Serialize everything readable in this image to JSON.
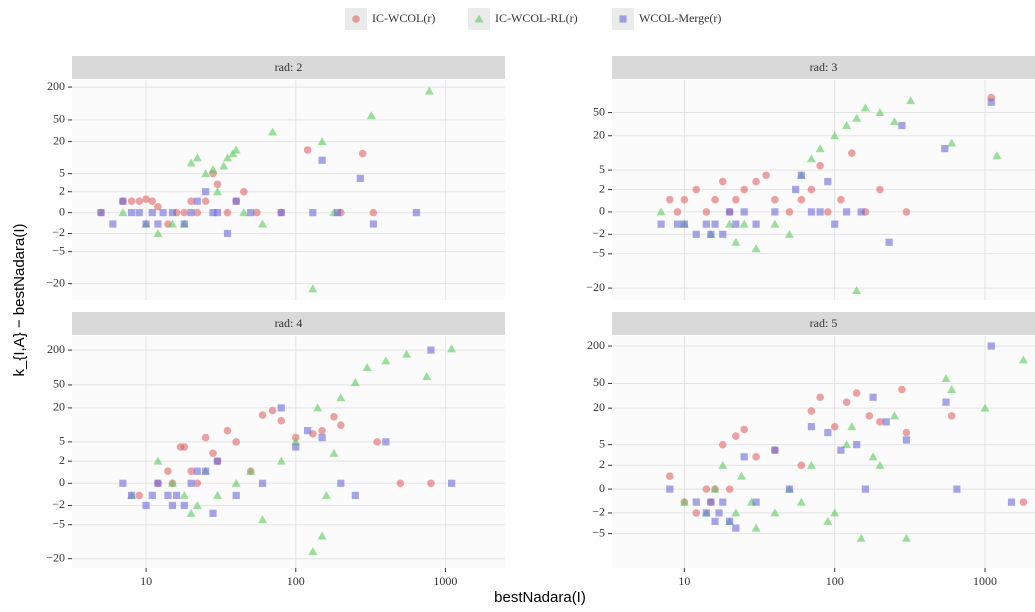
{
  "chart_data": [
    {
      "type": "scatter",
      "title": "rad: 2",
      "xlabel": "bestNadara(I)",
      "ylabel": "k_{I,A} − bestNadara(I)",
      "xscale": "log",
      "yscale": "pseudo_log",
      "grid": true,
      "legend": "top",
      "xlim": [
        3.2,
        2500
      ],
      "ylim": [
        -40,
        270
      ],
      "xticks": [
        10,
        100,
        1000
      ],
      "yticks": [
        {
          "value": -20,
          "label": "−20"
        },
        {
          "value": -5,
          "label": "−5"
        },
        {
          "value": -2,
          "label": "−2"
        },
        0,
        2,
        5,
        20,
        50,
        200
      ],
      "series": [
        {
          "name": "IC-WCOL(r)",
          "color": "#e06666",
          "marker": "circle",
          "x": [
            5,
            7,
            8,
            9,
            10,
            11,
            12,
            14,
            16,
            18,
            20,
            22,
            25,
            28,
            30,
            35,
            40,
            45,
            55,
            80,
            120,
            200,
            280,
            330
          ],
          "values": [
            0,
            1,
            1,
            1,
            1.2,
            1,
            0.5,
            -1,
            0,
            0,
            1,
            0,
            1,
            5,
            3,
            0,
            1,
            2,
            0,
            0,
            14,
            0,
            12,
            0
          ]
        },
        {
          "name": "IC-WCOL-RL(r)",
          "color": "#5ccb5c",
          "marker": "triangle",
          "x": [
            7,
            10,
            12,
            15,
            18,
            20,
            22,
            25,
            28,
            30,
            33,
            35,
            38,
            40,
            45,
            60,
            70,
            130,
            150,
            180,
            320,
            780
          ],
          "values": [
            0,
            -1,
            -2,
            -1,
            -1,
            8,
            10,
            5,
            6,
            2,
            7,
            10,
            12,
            14,
            0,
            -1,
            30,
            -25,
            20,
            0,
            60,
            170
          ]
        },
        {
          "name": "WCOL-Merge(r)",
          "color": "#6a6ad8",
          "marker": "square",
          "x": [
            5,
            6,
            7,
            8,
            9,
            10,
            11,
            12,
            13,
            15,
            18,
            20,
            22,
            25,
            28,
            30,
            35,
            40,
            50,
            80,
            130,
            150,
            190,
            330,
            640,
            270
          ],
          "values": [
            0,
            -1,
            1,
            0,
            0,
            -1,
            0,
            -1,
            0,
            0,
            -1,
            0,
            1,
            2,
            0,
            0,
            -2,
            1,
            0,
            0,
            0,
            9,
            0,
            -1,
            0,
            4
          ]
        }
      ]
    },
    {
      "type": "scatter",
      "title": "rad: 3",
      "xscale": "log",
      "yscale": "pseudo_log",
      "grid": true,
      "xlim": [
        3.3,
        2150
      ],
      "ylim": [
        -32,
        180
      ],
      "xticks": [
        10,
        100,
        1000
      ],
      "yticks": [
        {
          "value": -20,
          "label": "−20"
        },
        {
          "value": -5,
          "label": "−5"
        },
        {
          "value": -2,
          "label": "−2"
        },
        0,
        2,
        5,
        20,
        50
      ],
      "series": [
        {
          "name": "IC-WCOL(r)",
          "color": "#e06666",
          "marker": "circle",
          "x": [
            8,
            9,
            10,
            12,
            14,
            16,
            18,
            20,
            22,
            25,
            30,
            35,
            40,
            50,
            60,
            70,
            80,
            90,
            110,
            130,
            160,
            200,
            300,
            1100
          ],
          "values": [
            1,
            0,
            1,
            2,
            0,
            1,
            3,
            0,
            1,
            2,
            3,
            4,
            1,
            0,
            1,
            2,
            6,
            0,
            1,
            10,
            0,
            2,
            0,
            90
          ]
        },
        {
          "name": "IC-WCOL-RL(r)",
          "color": "#5ccb5c",
          "marker": "triangle",
          "x": [
            7,
            10,
            15,
            20,
            22,
            25,
            30,
            40,
            50,
            60,
            70,
            80,
            100,
            120,
            140,
            160,
            200,
            250,
            320,
            600,
            1200,
            140
          ],
          "values": [
            0,
            -1,
            -2,
            -1,
            -3,
            -1,
            -4,
            -1,
            -2,
            4,
            8,
            12,
            20,
            30,
            40,
            60,
            50,
            35,
            80,
            15,
            9,
            -22
          ]
        },
        {
          "name": "WCOL-Merge(r)",
          "color": "#6a6ad8",
          "marker": "square",
          "x": [
            7,
            9,
            10,
            12,
            14,
            15,
            16,
            18,
            20,
            22,
            25,
            30,
            40,
            55,
            60,
            70,
            80,
            90,
            100,
            150,
            230,
            280,
            540,
            1100,
            120
          ],
          "values": [
            -1,
            -1,
            -1,
            -2,
            -1,
            -2,
            -1,
            -2,
            0,
            -1,
            0,
            -1,
            0,
            2,
            4,
            0,
            0,
            3,
            -1,
            0,
            -3,
            30,
            12,
            75,
            0
          ]
        }
      ]
    },
    {
      "type": "scatter",
      "title": "rad: 4",
      "xscale": "log",
      "yscale": "pseudo_log",
      "grid": true,
      "xlim": [
        3.2,
        2500
      ],
      "ylim": [
        -29,
        350
      ],
      "xticks": [
        10,
        100,
        1000
      ],
      "yticks": [
        {
          "value": -20,
          "label": "−20"
        },
        {
          "value": -5,
          "label": "−5"
        },
        {
          "value": -2,
          "label": "−2"
        },
        0,
        2,
        5,
        20,
        50,
        200
      ],
      "series": [
        {
          "name": "IC-WCOL(r)",
          "color": "#e06666",
          "marker": "circle",
          "x": [
            9,
            12,
            14,
            15,
            17,
            18,
            20,
            22,
            25,
            28,
            30,
            35,
            40,
            50,
            60,
            70,
            80,
            100,
            130,
            150,
            180,
            200,
            350,
            500,
            800
          ],
          "values": [
            -1,
            0,
            1,
            0,
            4,
            4,
            1,
            0,
            6,
            3,
            2,
            8,
            5,
            1,
            15,
            18,
            12,
            6,
            7,
            8,
            14,
            10,
            5,
            0,
            0
          ]
        },
        {
          "name": "IC-WCOL-RL(r)",
          "color": "#5ccb5c",
          "marker": "triangle",
          "x": [
            8,
            12,
            15,
            18,
            20,
            22,
            25,
            30,
            40,
            50,
            60,
            80,
            100,
            130,
            150,
            160,
            200,
            250,
            300,
            400,
            550,
            750,
            1100,
            180,
            140
          ],
          "values": [
            -1,
            2,
            0,
            -1,
            -3,
            -2,
            1,
            -1,
            0,
            1,
            -4,
            2,
            5,
            -15,
            -8,
            -1,
            30,
            55,
            100,
            130,
            170,
            70,
            210,
            3,
            20
          ]
        },
        {
          "name": "WCOL-Merge(r)",
          "color": "#6a6ad8",
          "marker": "square",
          "x": [
            7,
            8,
            10,
            11,
            12,
            14,
            15,
            16,
            18,
            20,
            22,
            25,
            28,
            30,
            40,
            60,
            80,
            100,
            120,
            150,
            200,
            250,
            400,
            800,
            1100
          ],
          "values": [
            0,
            -1,
            -2,
            -1,
            0,
            -1,
            -2,
            -1,
            -2,
            0,
            1,
            1,
            -3,
            2,
            -1,
            0,
            20,
            4,
            8,
            6,
            0,
            -1,
            5,
            200,
            0
          ]
        }
      ]
    },
    {
      "type": "scatter",
      "title": "rad: 5",
      "xscale": "log",
      "yscale": "pseudo_log",
      "grid": true,
      "xlim": [
        3.3,
        2150
      ],
      "ylim": [
        -18.5,
        290
      ],
      "xticks": [
        10,
        100,
        1000
      ],
      "yticks": [
        {
          "value": -5,
          "label": "−5"
        },
        {
          "value": -2,
          "label": "−2"
        },
        0,
        2,
        5,
        20,
        50,
        200
      ],
      "series": [
        {
          "name": "IC-WCOL(r)",
          "color": "#e06666",
          "marker": "circle",
          "x": [
            8,
            10,
            12,
            14,
            15,
            16,
            18,
            20,
            22,
            25,
            30,
            40,
            60,
            70,
            80,
            100,
            120,
            140,
            170,
            200,
            280,
            300,
            600,
            1800
          ],
          "values": [
            1,
            -1,
            -2,
            0,
            -1,
            0,
            5,
            0,
            7,
            9,
            3,
            4,
            2,
            18,
            30,
            10,
            25,
            35,
            15,
            12,
            40,
            8,
            15,
            -1
          ]
        },
        {
          "name": "IC-WCOL-RL(r)",
          "color": "#5ccb5c",
          "marker": "triangle",
          "x": [
            10,
            14,
            16,
            18,
            20,
            22,
            24,
            28,
            30,
            40,
            50,
            60,
            70,
            90,
            100,
            120,
            130,
            150,
            180,
            200,
            250,
            300,
            550,
            600,
            1000,
            1800
          ],
          "values": [
            -1,
            -2,
            0,
            2,
            -3,
            -2,
            1,
            -1,
            -4,
            -2,
            0,
            -1,
            2,
            -3,
            -2,
            5,
            10,
            -6,
            3,
            2,
            15,
            -6,
            60,
            40,
            20,
            120
          ]
        },
        {
          "name": "WCOL-Merge(r)",
          "color": "#6a6ad8",
          "marker": "square",
          "x": [
            8,
            12,
            14,
            15,
            16,
            17,
            18,
            20,
            22,
            25,
            30,
            40,
            50,
            70,
            90,
            110,
            140,
            160,
            180,
            220,
            300,
            550,
            650,
            1100,
            1500
          ],
          "values": [
            0,
            -1,
            -2,
            -1,
            -3,
            -2,
            -1,
            -3,
            -4,
            3,
            -1,
            4,
            0,
            10,
            8,
            4,
            5,
            0,
            30,
            12,
            6,
            25,
            0,
            200,
            -1
          ]
        }
      ]
    }
  ]
}
